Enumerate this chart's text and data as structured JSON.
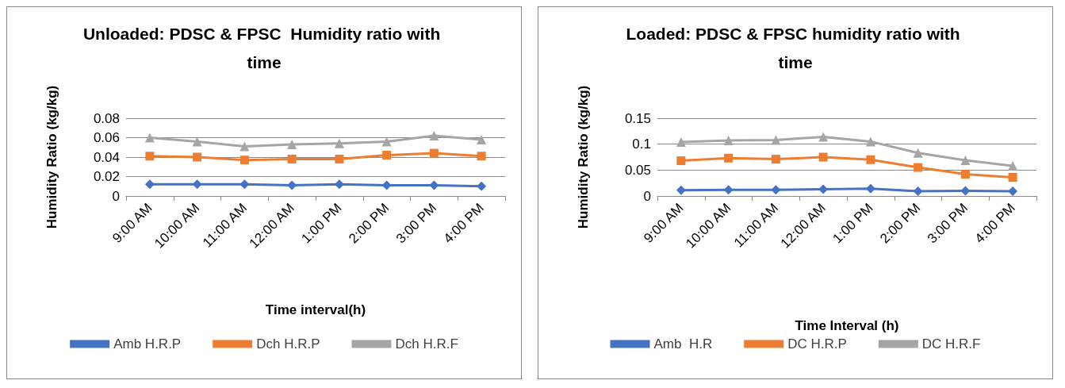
{
  "chart_data": [
    {
      "type": "line",
      "title": "Unloaded: PDSC & FPSC  Humidity ratio with time",
      "xlabel": "Time interval(h)",
      "ylabel": "Humidity Ratio (kg/kg)",
      "categories": [
        "9:00 AM",
        "10:00 AM",
        "11:00 AM",
        "12:00 AM",
        "1:00 PM",
        "2:00 PM",
        "3:00 PM",
        "4:00 PM"
      ],
      "ylim": [
        0,
        0.08
      ],
      "yticks": [
        0,
        0.02,
        0.04,
        0.06,
        0.08
      ],
      "grid": "y",
      "legend": "bottom",
      "series": [
        {
          "name": "Amb H.R.P",
          "color": "#4472c4",
          "marker": "diamond",
          "values": [
            0.012,
            0.012,
            0.012,
            0.011,
            0.012,
            0.011,
            0.011,
            0.01
          ]
        },
        {
          "name": "Dch H.R.P",
          "color": "#ed7d31",
          "marker": "square",
          "values": [
            0.041,
            0.04,
            0.037,
            0.038,
            0.038,
            0.042,
            0.044,
            0.041
          ]
        },
        {
          "name": "Dch H.R.F",
          "color": "#a5a5a5",
          "marker": "triangle",
          "values": [
            0.06,
            0.056,
            0.051,
            0.053,
            0.054,
            0.056,
            0.062,
            0.058
          ]
        }
      ]
    },
    {
      "type": "line",
      "title": "Loaded: PDSC & FPSC humidity ratio with time",
      "xlabel": "Time Interval (h)",
      "ylabel": "Humidity Ratio (kg/kg)",
      "categories": [
        "9:00 AM",
        "10:00 AM",
        "11:00 AM",
        "12:00 AM",
        "1:00 PM",
        "2:00 PM",
        "3:00 PM",
        "4:00 PM"
      ],
      "ylim": [
        0,
        0.15
      ],
      "yticks": [
        0,
        0.05,
        0.1,
        0.15
      ],
      "grid": "y",
      "legend": "bottom",
      "series": [
        {
          "name": "Amb  H.R",
          "color": "#4472c4",
          "marker": "diamond",
          "values": [
            0.011,
            0.012,
            0.012,
            0.013,
            0.014,
            0.009,
            0.01,
            0.009
          ]
        },
        {
          "name": "DC H.R.P",
          "color": "#ed7d31",
          "marker": "square",
          "values": [
            0.068,
            0.073,
            0.071,
            0.075,
            0.07,
            0.055,
            0.042,
            0.036
          ]
        },
        {
          "name": "DC H.R.F",
          "color": "#a5a5a5",
          "marker": "triangle",
          "values": [
            0.104,
            0.107,
            0.108,
            0.114,
            0.105,
            0.083,
            0.069,
            0.058
          ]
        }
      ]
    }
  ]
}
